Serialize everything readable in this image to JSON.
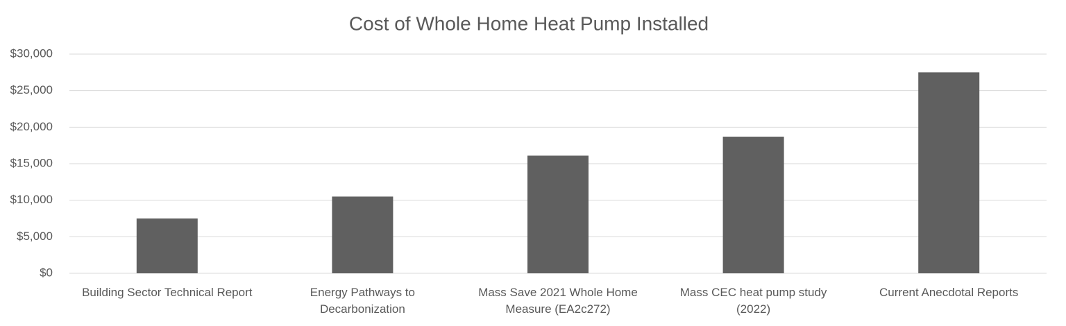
{
  "chart_data": {
    "type": "bar",
    "title": "Cost of Whole Home Heat Pump Installed",
    "categories": [
      "Building Sector Technical Report",
      "Energy Pathways to\nDecarbonization",
      "Mass Save 2021 Whole Home\nMeasure (EA2c272)",
      "Mass CEC heat pump study\n(2022)",
      "Current Anecdotal Reports"
    ],
    "values": [
      7500,
      10500,
      16100,
      18700,
      27500
    ],
    "color": "#606060",
    "ylim": [
      0,
      30000
    ],
    "yticks": [
      {
        "value": 0,
        "label": "$0"
      },
      {
        "value": 5000,
        "label": "$5,000"
      },
      {
        "value": 10000,
        "label": "$10,000"
      },
      {
        "value": 15000,
        "label": "$15,000"
      },
      {
        "value": 20000,
        "label": "$20,000"
      },
      {
        "value": 25000,
        "label": "$25,000"
      },
      {
        "value": 30000,
        "label": "$30,000"
      }
    ],
    "grid": true
  }
}
